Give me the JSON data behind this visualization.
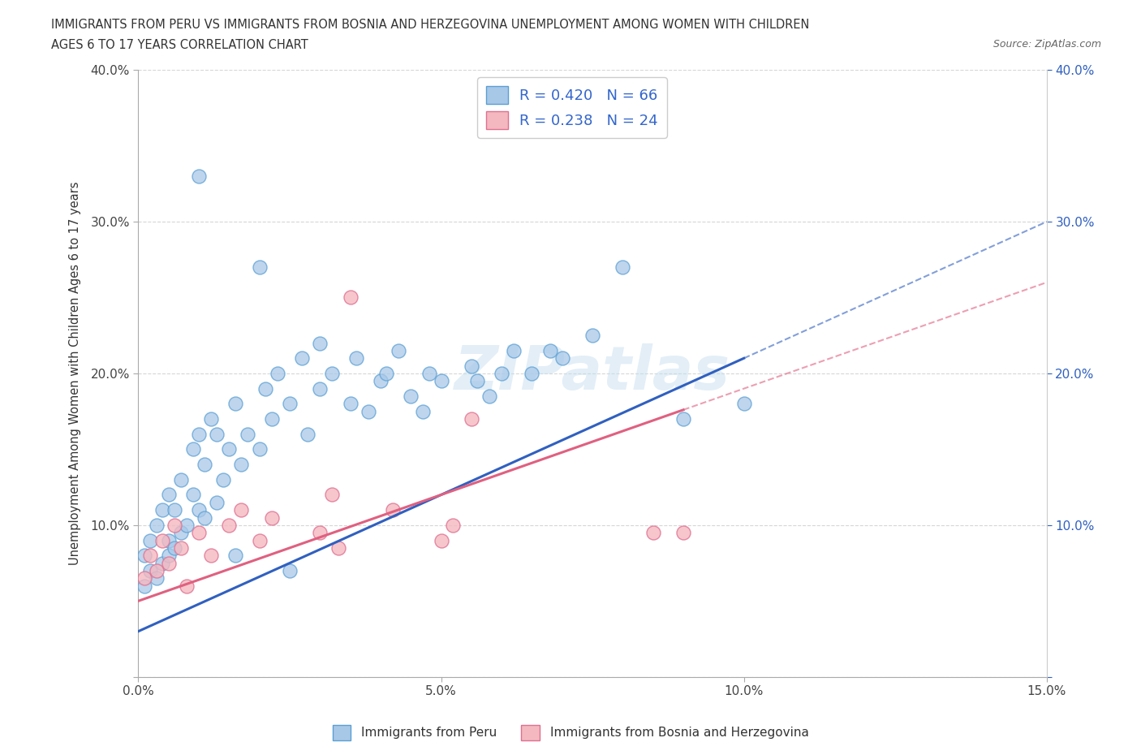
{
  "title_line1": "IMMIGRANTS FROM PERU VS IMMIGRANTS FROM BOSNIA AND HERZEGOVINA UNEMPLOYMENT AMONG WOMEN WITH CHILDREN",
  "title_line2": "AGES 6 TO 17 YEARS CORRELATION CHART",
  "source_text": "Source: ZipAtlas.com",
  "ylabel": "Unemployment Among Women with Children Ages 6 to 17 years",
  "xlim": [
    0.0,
    0.15
  ],
  "ylim": [
    0.0,
    0.4
  ],
  "peru_color": "#a8c8e8",
  "bosnia_color": "#f4b8c0",
  "peru_edge": "#5a9fd4",
  "bosnia_edge": "#e07090",
  "trend_peru_color": "#3060c0",
  "trend_bosnia_color": "#e06080",
  "R_peru": 0.42,
  "N_peru": 66,
  "R_bosnia": 0.238,
  "N_bosnia": 24,
  "legend_text_color": "#3366cc",
  "watermark": "ZIPatlas",
  "peru_x": [
    0.001,
    0.001,
    0.002,
    0.002,
    0.003,
    0.003,
    0.004,
    0.004,
    0.005,
    0.005,
    0.005,
    0.006,
    0.006,
    0.007,
    0.007,
    0.008,
    0.009,
    0.009,
    0.01,
    0.01,
    0.011,
    0.011,
    0.012,
    0.013,
    0.013,
    0.014,
    0.015,
    0.016,
    0.017,
    0.018,
    0.02,
    0.021,
    0.022,
    0.023,
    0.025,
    0.027,
    0.028,
    0.03,
    0.032,
    0.035,
    0.036,
    0.038,
    0.04,
    0.041,
    0.043,
    0.045,
    0.047,
    0.048,
    0.05,
    0.055,
    0.056,
    0.058,
    0.06,
    0.062,
    0.065,
    0.068,
    0.07,
    0.075,
    0.08,
    0.09,
    0.1,
    0.01,
    0.02,
    0.03,
    0.016,
    0.025
  ],
  "peru_y": [
    0.06,
    0.08,
    0.07,
    0.09,
    0.065,
    0.1,
    0.075,
    0.11,
    0.08,
    0.09,
    0.12,
    0.085,
    0.11,
    0.095,
    0.13,
    0.1,
    0.12,
    0.15,
    0.11,
    0.16,
    0.105,
    0.14,
    0.17,
    0.115,
    0.16,
    0.13,
    0.15,
    0.18,
    0.14,
    0.16,
    0.15,
    0.19,
    0.17,
    0.2,
    0.18,
    0.21,
    0.16,
    0.19,
    0.2,
    0.18,
    0.21,
    0.175,
    0.195,
    0.2,
    0.215,
    0.185,
    0.175,
    0.2,
    0.195,
    0.205,
    0.195,
    0.185,
    0.2,
    0.215,
    0.2,
    0.215,
    0.21,
    0.225,
    0.27,
    0.17,
    0.18,
    0.33,
    0.27,
    0.22,
    0.08,
    0.07
  ],
  "bosnia_x": [
    0.001,
    0.002,
    0.003,
    0.004,
    0.005,
    0.006,
    0.007,
    0.008,
    0.01,
    0.012,
    0.015,
    0.017,
    0.02,
    0.022,
    0.03,
    0.032,
    0.033,
    0.035,
    0.042,
    0.05,
    0.052,
    0.055,
    0.085,
    0.09
  ],
  "bosnia_y": [
    0.065,
    0.08,
    0.07,
    0.09,
    0.075,
    0.1,
    0.085,
    0.06,
    0.095,
    0.08,
    0.1,
    0.11,
    0.09,
    0.105,
    0.095,
    0.12,
    0.085,
    0.25,
    0.11,
    0.09,
    0.1,
    0.17,
    0.095,
    0.095
  ],
  "peru_trend_x0": 0.0,
  "peru_trend_y0": 0.03,
  "peru_trend_x1": 0.15,
  "peru_trend_y1": 0.3,
  "bosnia_trend_x0": 0.0,
  "bosnia_trend_y0": 0.05,
  "bosnia_trend_x1": 0.15,
  "bosnia_trend_y1": 0.26
}
